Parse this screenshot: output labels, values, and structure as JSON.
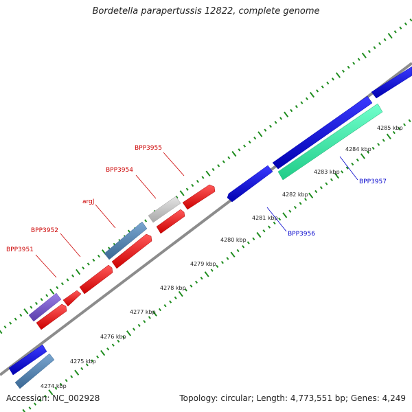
{
  "title": "Bordetella parapertussis 12822, complete genome",
  "accession": "Accession: NC_002928",
  "summary": "Topology: circular; Length: 4,773,551 bp; Genes: 4,249",
  "scale_labels": [
    "4274 kbp",
    "4275 kbp",
    "4276 kbp",
    "4277 kbp",
    "4278 kbp",
    "4279 kbp",
    "4280 kbp",
    "4281 kbp",
    "4282 kbp",
    "4283 kbp",
    "4284 kbp",
    "4285 kbp"
  ],
  "gene_labels": [
    {
      "name": "BPP3951",
      "color": "#cc0000"
    },
    {
      "name": "BPP3952",
      "color": "#cc0000"
    },
    {
      "name": "argJ",
      "color": "#cc0000"
    },
    {
      "name": "BPP3954",
      "color": "#cc0000"
    },
    {
      "name": "BPP3955",
      "color": "#cc0000"
    },
    {
      "name": "BPP3956",
      "color": "#0000cc"
    },
    {
      "name": "BPP3957",
      "color": "#0000cc"
    }
  ],
  "colors": {
    "backbone": "#8c8c8c",
    "tick": "#1e8c1e",
    "red": "#ff0000",
    "blue": "#0000e6",
    "steelblue": "#4f7fae",
    "purple": "#7755cc",
    "grey": "#c8c8c8",
    "aqua": "#33eeaa"
  }
}
